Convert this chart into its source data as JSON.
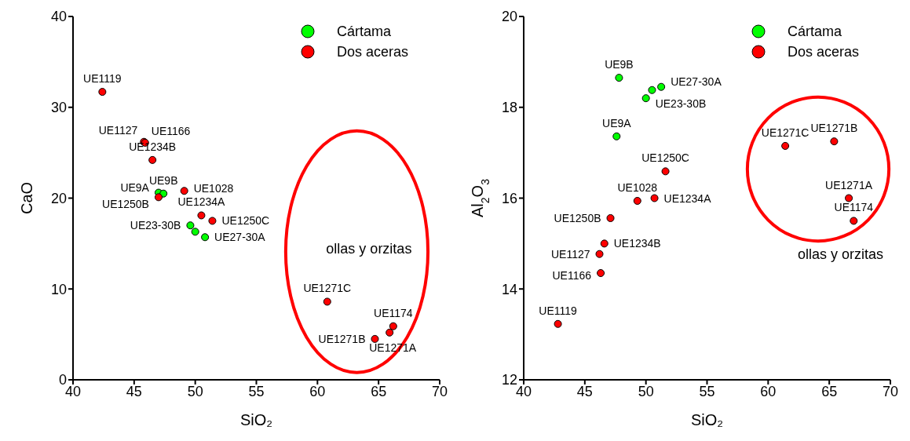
{
  "chart_data": [
    {
      "type": "scatter",
      "xlabel": "SiO₂",
      "ylabel": "CaO",
      "xlim": [
        40,
        70
      ],
      "xticks": [
        40,
        45,
        50,
        55,
        60,
        65,
        70
      ],
      "ylim": [
        0,
        40
      ],
      "yticks": [
        0,
        10,
        20,
        30,
        40
      ],
      "legend": "top right",
      "marker": "circle",
      "grid": false,
      "annotations": [
        "ollas y orzitas"
      ],
      "series": [
        {
          "name": "Cártama",
          "color": "#00ff00",
          "x": [
            47.0,
            47.4,
            49.6,
            50.0,
            50.8
          ],
          "values": [
            20.6,
            20.5,
            17.0,
            16.3,
            15.7
          ],
          "value_labels": [
            "UE9A",
            "UE9B",
            "UE23-30B",
            null,
            "UE27-30A"
          ]
        },
        {
          "name": "Dos aceras",
          "color": "#ff0000",
          "x": [
            42.4,
            45.8,
            45.9,
            46.5,
            47.0,
            49.1,
            50.5,
            51.4,
            60.8,
            64.7,
            65.9,
            66.2
          ],
          "values": [
            31.7,
            26.2,
            26.1,
            24.2,
            20.1,
            20.8,
            18.1,
            17.5,
            8.6,
            4.5,
            5.2,
            5.9
          ],
          "value_labels": [
            "UE1119",
            "UE1127",
            "UE1166",
            "UE1234B",
            "UE1250B",
            "UE1028",
            "UE1234A",
            "UE1250C",
            "UE1271C",
            "UE1271B",
            "UE1271A",
            "UE1174"
          ]
        }
      ]
    },
    {
      "type": "scatter",
      "xlabel": "SiO₂",
      "ylabel": "Al$_{2}$O$_{3}$",
      "xlim": [
        40,
        70
      ],
      "xticks": [
        40,
        45,
        50,
        55,
        60,
        65,
        70
      ],
      "ylim": [
        12,
        20
      ],
      "yticks": [
        12,
        14,
        16,
        18,
        20
      ],
      "legend": "top right",
      "marker": "circle",
      "grid": false,
      "annotations": [
        "ollas y orzitas"
      ],
      "series": [
        {
          "name": "Cártama",
          "color": "#00ff00",
          "x": [
            47.8,
            51.25,
            50.5,
            50.0,
            47.6
          ],
          "values": [
            18.65,
            18.45,
            18.38,
            18.2,
            17.36
          ],
          "value_labels": [
            "UE9B",
            "UE27-30A",
            null,
            "UE23-30B",
            "UE9A"
          ]
        },
        {
          "name": "Dos aceras",
          "color": "#ff0000",
          "x": [
            42.8,
            46.3,
            46.2,
            46.6,
            47.1,
            49.3,
            50.7,
            51.6,
            61.4,
            65.4,
            66.6,
            67.0
          ],
          "values": [
            13.23,
            14.35,
            14.77,
            15.0,
            15.56,
            15.94,
            16.0,
            16.59,
            17.15,
            17.25,
            16.0,
            15.5
          ],
          "value_labels": [
            "UE1119",
            "UE1166",
            "UE1127",
            "UE1234B",
            "UE1250B",
            "UE1028",
            "UE1234A",
            "UE1250C",
            "UE1271C",
            "UE1271B",
            "UE1271A",
            "UE1174"
          ]
        }
      ]
    }
  ]
}
